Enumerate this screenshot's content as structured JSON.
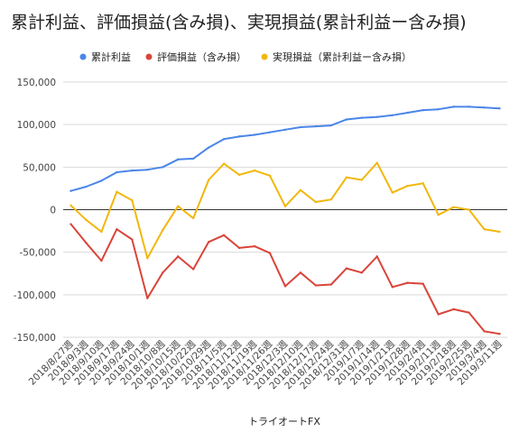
{
  "chart_data": {
    "type": "line",
    "title": "累計利益、評価損益(含み損)、実現損益(累計利益ー含み損)",
    "xlabel": "トライオートFX",
    "ylabel": "",
    "ylim": [
      -150000,
      150000
    ],
    "yticks": [
      150000,
      100000,
      50000,
      0,
      -50000,
      -100000,
      -150000
    ],
    "ytick_labels": [
      "150,000",
      "100,000",
      "50,000",
      "0",
      "-50,000",
      "-100,000",
      "-150,000"
    ],
    "grid": true,
    "legend": "top",
    "categories": [
      "2018/8/27週",
      "2018/9/3週",
      "2018/9/10週",
      "2018/9/17週",
      "2018/9/24週",
      "2018/10/1週",
      "2018/10/8週",
      "2018/10/15週",
      "2018/10/22週",
      "2018/10/29週",
      "2018/11/5週",
      "2018/11/12週",
      "2018/11/19週",
      "2018/11/26週",
      "2018/12/3週",
      "2018/12/10週",
      "2018/12/17週",
      "2018/12/24週",
      "2018/12/31週",
      "2019/1/7週",
      "2019/1/14週",
      "2019/1/21週",
      "2019/1/28週",
      "2019/2/4週",
      "2019/2/11週",
      "2019/2/18週",
      "2019/2/25週",
      "2019/3/4週",
      "2019/3/11週"
    ],
    "series": [
      {
        "name": "累計利益",
        "color": "#4a86e8",
        "values": [
          22000,
          27000,
          34000,
          44000,
          46000,
          47000,
          50000,
          59000,
          60000,
          73000,
          83000,
          86000,
          88000,
          91000,
          94000,
          97000,
          98000,
          99000,
          106000,
          108000,
          109000,
          111000,
          114000,
          117000,
          118000,
          121000,
          121000,
          120000,
          119000
        ]
      },
      {
        "name": "評価損益（含み損）",
        "color": "#d9453a",
        "values": [
          -17000,
          -39000,
          -60000,
          -23000,
          -35000,
          -104000,
          -74000,
          -55000,
          -70000,
          -38000,
          -30000,
          -45000,
          -43000,
          -51000,
          -90000,
          -74000,
          -89000,
          -88000,
          -69000,
          -74000,
          -55000,
          -91000,
          -86000,
          -87000,
          -123000,
          -117000,
          -121000,
          -143000,
          -146000
        ]
      },
      {
        "name": "実現損益（累計利益ー含み損）",
        "color": "#f2b70c",
        "values": [
          5000,
          -12000,
          -26000,
          21000,
          11000,
          -57000,
          -24000,
          4000,
          -10000,
          35000,
          54000,
          41000,
          46000,
          40000,
          4000,
          23000,
          9000,
          12000,
          38000,
          35000,
          55000,
          20000,
          28000,
          31000,
          -6000,
          3000,
          0,
          -23000,
          -26000
        ]
      }
    ]
  }
}
